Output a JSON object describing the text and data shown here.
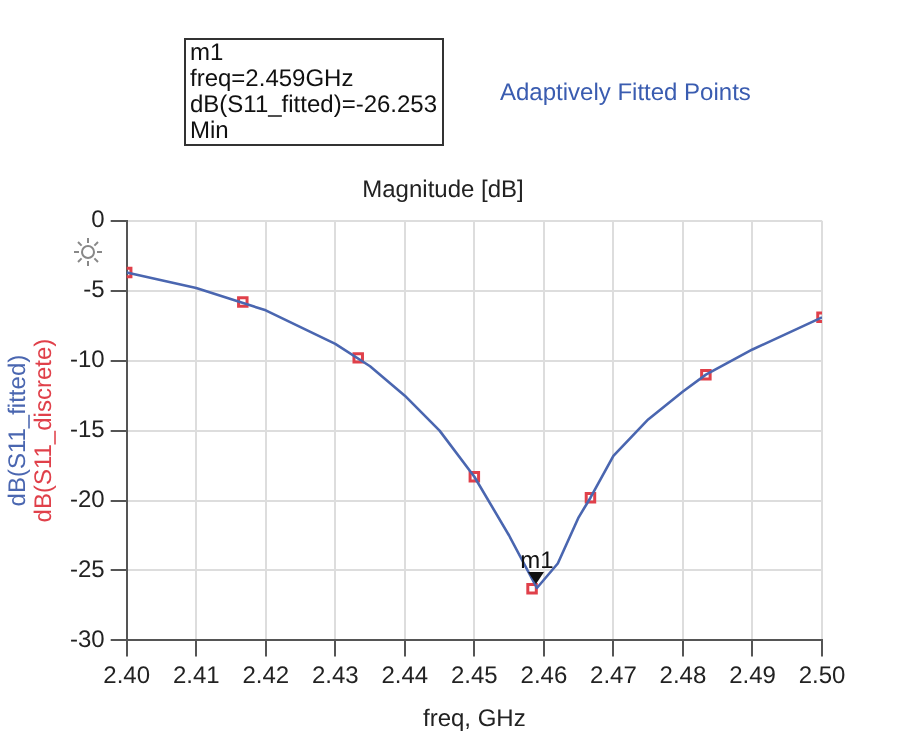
{
  "chart_data": {
    "type": "line",
    "title": "Magnitude [dB]",
    "xlabel": "freq, GHz",
    "annotations": [
      "m1\nfreq=2.459GHz\ndB(S11_fitted)=-26.253\nMin",
      "Adaptively Fitted Points",
      {
        "text": "m1",
        "x": 2.459,
        "y": -26.253
      }
    ],
    "series": [
      {
        "name": "dB(S11_fitted)",
        "color": "#4a66b0",
        "marker": "none",
        "x": [
          2.4,
          2.41,
          2.42,
          2.43,
          2.435,
          2.44,
          2.445,
          2.45,
          2.455,
          2.459,
          2.462,
          2.465,
          2.4667,
          2.47,
          2.475,
          2.48,
          2.4833,
          2.49,
          2.5
        ],
        "values": [
          -3.7,
          -4.8,
          -6.4,
          -8.8,
          -10.4,
          -12.5,
          -15.0,
          -18.3,
          -22.5,
          -26.253,
          -24.5,
          -21.2,
          -19.8,
          -16.8,
          -14.2,
          -12.2,
          -11.0,
          -9.2,
          -6.9
        ]
      },
      {
        "name": "dB(S11_discrete)",
        "color": "#e0404a",
        "type": "scatter",
        "marker": "square",
        "x": [
          2.4,
          2.4167,
          2.4333,
          2.45,
          2.4583,
          2.4667,
          2.4833,
          2.5
        ],
        "values": [
          -3.7,
          -5.8,
          -9.8,
          -18.3,
          -26.3,
          -19.8,
          -11.0,
          -6.9
        ]
      }
    ],
    "xlim": [
      2.4,
      2.5
    ],
    "xticks": [
      {
        "value": 2.4,
        "label": "2.40"
      },
      {
        "value": 2.41,
        "label": "2.41"
      },
      {
        "value": 2.42,
        "label": "2.42"
      },
      {
        "value": 2.43,
        "label": "2.43"
      },
      {
        "value": 2.44,
        "label": "2.44"
      },
      {
        "value": 2.45,
        "label": "2.45"
      },
      {
        "value": 2.46,
        "label": "2.46"
      },
      {
        "value": 2.47,
        "label": "2.47"
      },
      {
        "value": 2.48,
        "label": "2.48"
      },
      {
        "value": 2.49,
        "label": "2.49"
      },
      {
        "value": 2.5,
        "label": "2.50"
      }
    ],
    "ylim": [
      -30,
      0
    ],
    "yticks": [
      0,
      -5,
      -10,
      -15,
      -20,
      -25,
      -30
    ],
    "grid": true,
    "legend": false
  }
}
